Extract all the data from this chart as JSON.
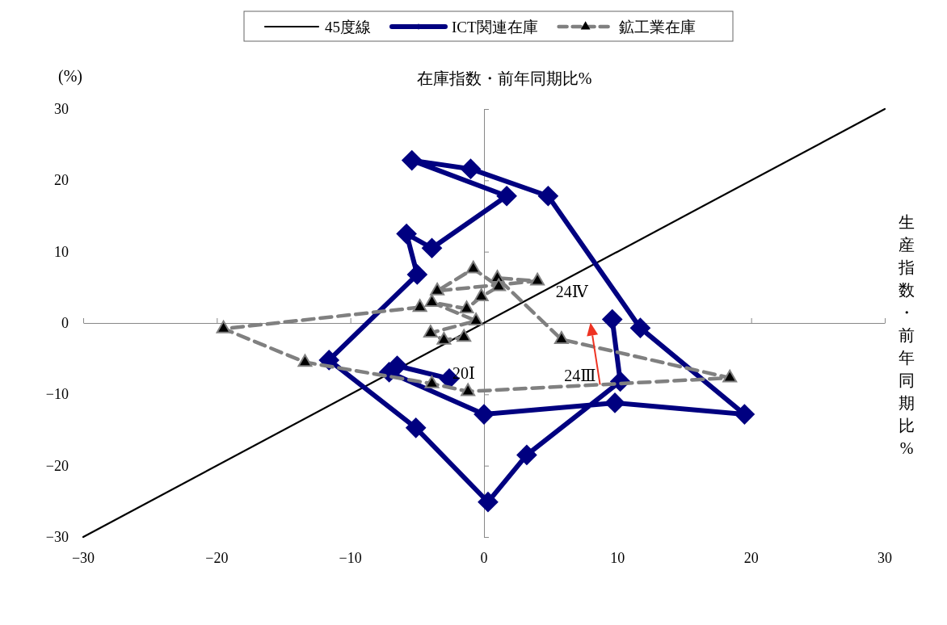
{
  "chart_data": {
    "type": "line",
    "ylabel": "在庫指数・前年同期比%",
    "xlabel": "生産指数・前年同期比%",
    "xlim": [
      -30,
      30
    ],
    "ylim": [
      -30,
      30
    ],
    "xticks": [
      -30,
      -20,
      -10,
      0,
      10,
      20,
      30
    ],
    "yticks": [
      -30,
      -20,
      -10,
      0,
      10,
      20,
      30
    ],
    "legend": "top",
    "series": [
      {
        "name": "45度線",
        "color": "#000000",
        "marker": "none",
        "line_style": "solid",
        "x": [
          -30,
          30
        ],
        "values": [
          -30,
          30
        ]
      },
      {
        "name": "ICT関連在庫",
        "color": "#000080",
        "marker": "diamond",
        "line_style": "solid",
        "x": [
          -2.6,
          -6.5,
          -7.1,
          0,
          9.8,
          19.5,
          11.7,
          4.8,
          -1.0,
          -5.4,
          1.7,
          -3.9,
          -5.8,
          -5.0,
          -11.6,
          -5.1,
          0.3,
          3.2,
          10.2,
          9.6
        ],
        "values": [
          -7.8,
          -6.0,
          -6.9,
          -12.8,
          -11.2,
          -12.8,
          -0.7,
          17.8,
          21.6,
          22.8,
          17.8,
          10.5,
          12.5,
          6.8,
          -5.2,
          -14.7,
          -25.1,
          -18.5,
          -8.2,
          0.5
        ]
      },
      {
        "name": "鉱工業在庫",
        "color": "#808080",
        "marker": "triangle",
        "line_style": "dashed",
        "x": [
          -4.8,
          -19.5,
          -13.4,
          -3.9,
          -1.2,
          18.4,
          5.8,
          1.0,
          4.0,
          -3.5,
          -0.8,
          1.1,
          -0.2,
          -1.3,
          -3.9,
          -0.6,
          -4.0,
          -3.0,
          -1.5
        ],
        "values": [
          2.2,
          -0.8,
          -5.5,
          -8.5,
          -9.6,
          -7.7,
          -2.3,
          6.3,
          5.9,
          4.5,
          7.6,
          5.1,
          3.7,
          2.0,
          2.9,
          0.3,
          -1.4,
          -2.4,
          -2.0
        ]
      }
    ],
    "annotations": [
      "(%)",
      {
        "text": "20Ⅰ",
        "x": -2.6,
        "y": -7.8
      },
      {
        "text": "24Ⅲ",
        "x": 10.2,
        "y": -8.2
      },
      {
        "text": "24Ⅳ",
        "x": 9.6,
        "y": 0.5
      }
    ]
  }
}
